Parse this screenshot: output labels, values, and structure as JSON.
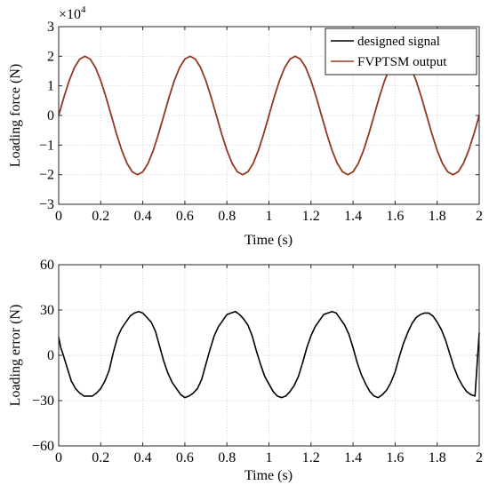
{
  "chart_data": [
    {
      "type": "line",
      "xlabel": "Time (s)",
      "ylabel": "Loading force (N)",
      "y_multiplier_base": "×10",
      "y_multiplier_exp": "4",
      "xlim": [
        0,
        2
      ],
      "ylim": [
        -3,
        3
      ],
      "xticks": [
        "0",
        "0.2",
        "0.4",
        "0.6",
        "0.8",
        "1",
        "1.2",
        "1.4",
        "1.6",
        "1.8",
        "2"
      ],
      "yticks": [
        "−3",
        "−2",
        "−1",
        "0",
        "1",
        "2",
        "3"
      ],
      "grid": true,
      "legend_position": "top-right",
      "series": [
        {
          "name": "designed signal",
          "color": "#000000",
          "x": [
            0,
            0.025,
            0.05,
            0.075,
            0.1,
            0.125,
            0.15,
            0.175,
            0.2,
            0.225,
            0.25,
            0.275,
            0.3,
            0.325,
            0.35,
            0.375,
            0.4,
            0.425,
            0.45,
            0.475,
            0.5,
            0.525,
            0.55,
            0.575,
            0.6,
            0.625,
            0.65,
            0.675,
            0.7,
            0.725,
            0.75,
            0.775,
            0.8,
            0.825,
            0.85,
            0.875,
            0.9,
            0.925,
            0.95,
            0.975,
            1.0,
            1.025,
            1.05,
            1.075,
            1.1,
            1.125,
            1.15,
            1.175,
            1.2,
            1.225,
            1.25,
            1.275,
            1.3,
            1.325,
            1.35,
            1.375,
            1.4,
            1.425,
            1.45,
            1.475,
            1.5,
            1.525,
            1.55,
            1.575,
            1.6,
            1.625,
            1.65,
            1.675,
            1.7,
            1.725,
            1.75,
            1.775,
            1.8,
            1.825,
            1.85,
            1.875,
            1.9,
            1.925,
            1.95,
            1.975,
            2.0
          ],
          "values": [
            0,
            0.618,
            1.176,
            1.618,
            1.902,
            2.0,
            1.902,
            1.618,
            1.176,
            0.618,
            0,
            -0.618,
            -1.176,
            -1.618,
            -1.902,
            -2.0,
            -1.902,
            -1.618,
            -1.176,
            -0.618,
            0,
            0.618,
            1.176,
            1.618,
            1.902,
            2.0,
            1.902,
            1.618,
            1.176,
            0.618,
            0,
            -0.618,
            -1.176,
            -1.618,
            -1.902,
            -2.0,
            -1.902,
            -1.618,
            -1.176,
            -0.618,
            0,
            0.618,
            1.176,
            1.618,
            1.902,
            2.0,
            1.902,
            1.618,
            1.176,
            0.618,
            0,
            -0.618,
            -1.176,
            -1.618,
            -1.902,
            -2.0,
            -1.902,
            -1.618,
            -1.176,
            -0.618,
            0,
            0.618,
            1.176,
            1.618,
            1.902,
            2.0,
            1.902,
            1.618,
            1.176,
            0.618,
            0,
            -0.618,
            -1.176,
            -1.618,
            -1.902,
            -2.0,
            -1.902,
            -1.618,
            -1.176,
            -0.618,
            0
          ]
        },
        {
          "name": "FVPTSM output",
          "color": "#a0391e",
          "x": [
            0,
            0.025,
            0.05,
            0.075,
            0.1,
            0.125,
            0.15,
            0.175,
            0.2,
            0.225,
            0.25,
            0.275,
            0.3,
            0.325,
            0.35,
            0.375,
            0.4,
            0.425,
            0.45,
            0.475,
            0.5,
            0.525,
            0.55,
            0.575,
            0.6,
            0.625,
            0.65,
            0.675,
            0.7,
            0.725,
            0.75,
            0.775,
            0.8,
            0.825,
            0.85,
            0.875,
            0.9,
            0.925,
            0.95,
            0.975,
            1.0,
            1.025,
            1.05,
            1.075,
            1.1,
            1.125,
            1.15,
            1.175,
            1.2,
            1.225,
            1.25,
            1.275,
            1.3,
            1.325,
            1.35,
            1.375,
            1.4,
            1.425,
            1.45,
            1.475,
            1.5,
            1.525,
            1.55,
            1.575,
            1.6,
            1.625,
            1.65,
            1.675,
            1.7,
            1.725,
            1.75,
            1.775,
            1.8,
            1.825,
            1.85,
            1.875,
            1.9,
            1.925,
            1.95,
            1.975,
            2.0
          ],
          "values": [
            0,
            0.618,
            1.176,
            1.618,
            1.902,
            2.0,
            1.902,
            1.618,
            1.176,
            0.618,
            0,
            -0.618,
            -1.176,
            -1.618,
            -1.902,
            -2.0,
            -1.902,
            -1.618,
            -1.176,
            -0.618,
            0,
            0.618,
            1.176,
            1.618,
            1.902,
            2.0,
            1.902,
            1.618,
            1.176,
            0.618,
            0,
            -0.618,
            -1.176,
            -1.618,
            -1.902,
            -2.0,
            -1.902,
            -1.618,
            -1.176,
            -0.618,
            0,
            0.618,
            1.176,
            1.618,
            1.902,
            2.0,
            1.902,
            1.618,
            1.176,
            0.618,
            0,
            -0.618,
            -1.176,
            -1.618,
            -1.902,
            -2.0,
            -1.902,
            -1.618,
            -1.176,
            -0.618,
            0,
            0.618,
            1.176,
            1.618,
            1.902,
            2.0,
            1.902,
            1.618,
            1.176,
            0.618,
            0,
            -0.618,
            -1.176,
            -1.618,
            -1.902,
            -2.0,
            -1.902,
            -1.618,
            -1.176,
            -0.618,
            0
          ]
        }
      ]
    },
    {
      "type": "line",
      "xlabel": "Time (s)",
      "ylabel": "Loading error (N)",
      "xlim": [
        0,
        2
      ],
      "ylim": [
        -60,
        60
      ],
      "xticks": [
        "0",
        "0.2",
        "0.4",
        "0.6",
        "0.8",
        "1",
        "1.2",
        "1.4",
        "1.6",
        "1.8",
        "2"
      ],
      "yticks": [
        "−60",
        "−30",
        "0",
        "30",
        "60"
      ],
      "grid": true,
      "series": [
        {
          "color": "#000000",
          "x": [
            0,
            0.01,
            0.02,
            0.04,
            0.06,
            0.08,
            0.1,
            0.12,
            0.14,
            0.16,
            0.18,
            0.2,
            0.22,
            0.24,
            0.26,
            0.28,
            0.3,
            0.32,
            0.34,
            0.36,
            0.38,
            0.4,
            0.42,
            0.44,
            0.46,
            0.48,
            0.5,
            0.52,
            0.54,
            0.56,
            0.58,
            0.6,
            0.62,
            0.64,
            0.66,
            0.68,
            0.7,
            0.72,
            0.74,
            0.76,
            0.78,
            0.8,
            0.82,
            0.84,
            0.86,
            0.88,
            0.9,
            0.92,
            0.94,
            0.96,
            0.98,
            1.0,
            1.02,
            1.04,
            1.06,
            1.08,
            1.1,
            1.12,
            1.14,
            1.16,
            1.18,
            1.2,
            1.22,
            1.24,
            1.26,
            1.28,
            1.3,
            1.32,
            1.34,
            1.36,
            1.38,
            1.4,
            1.42,
            1.44,
            1.46,
            1.48,
            1.5,
            1.52,
            1.54,
            1.56,
            1.58,
            1.6,
            1.62,
            1.64,
            1.66,
            1.68,
            1.7,
            1.72,
            1.74,
            1.76,
            1.78,
            1.8,
            1.82,
            1.84,
            1.86,
            1.88,
            1.9,
            1.92,
            1.94,
            1.96,
            1.98,
            2.0
          ],
          "values": [
            12,
            5,
            1,
            -8,
            -17,
            -22,
            -25,
            -27,
            -27,
            -27,
            -25,
            -22,
            -17,
            -10,
            2,
            12,
            18,
            22,
            26,
            28,
            29,
            28,
            25,
            22,
            16,
            6,
            -4,
            -12,
            -18,
            -22,
            -26,
            -28,
            -27,
            -25,
            -22,
            -16,
            -6,
            4,
            13,
            19,
            23,
            27,
            28,
            29,
            27,
            24,
            20,
            13,
            3,
            -6,
            -14,
            -19,
            -24,
            -27,
            -28,
            -27,
            -24,
            -20,
            -14,
            -5,
            5,
            13,
            19,
            23,
            27,
            28,
            29,
            28,
            24,
            20,
            14,
            5,
            -5,
            -13,
            -19,
            -24,
            -27,
            -28,
            -26,
            -23,
            -18,
            -11,
            -1,
            8,
            15,
            21,
            25,
            27,
            28,
            28,
            26,
            22,
            17,
            10,
            1,
            -8,
            -15,
            -20,
            -24,
            -26,
            -27,
            15
          ]
        }
      ]
    }
  ]
}
